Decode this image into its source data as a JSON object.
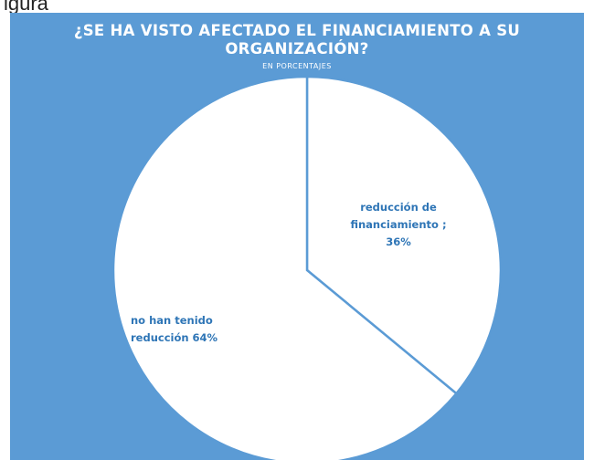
{
  "caption": "igura",
  "chart_data": {
    "type": "pie",
    "title_lines": [
      "¿SE HA VISTO AFECTADO EL FINANCIAMIENTO  A SU",
      "ORGANIZACIÓN?"
    ],
    "subtitle": "EN PORCENTAJES",
    "slices": [
      {
        "label_lines": [
          "reducción de",
          "financiamiento ;",
          "36%"
        ],
        "value": 36
      },
      {
        "label_lines": [
          "no han tenido",
          "reducción 64%"
        ],
        "value": 64
      }
    ],
    "colors": {
      "background": "#5b9bd5",
      "slice_fill": "#ffffff",
      "slice_border": "#5b9bd5",
      "label_text": "#2e75b6"
    },
    "start_angle_deg": 0,
    "direction": "clockwise"
  }
}
